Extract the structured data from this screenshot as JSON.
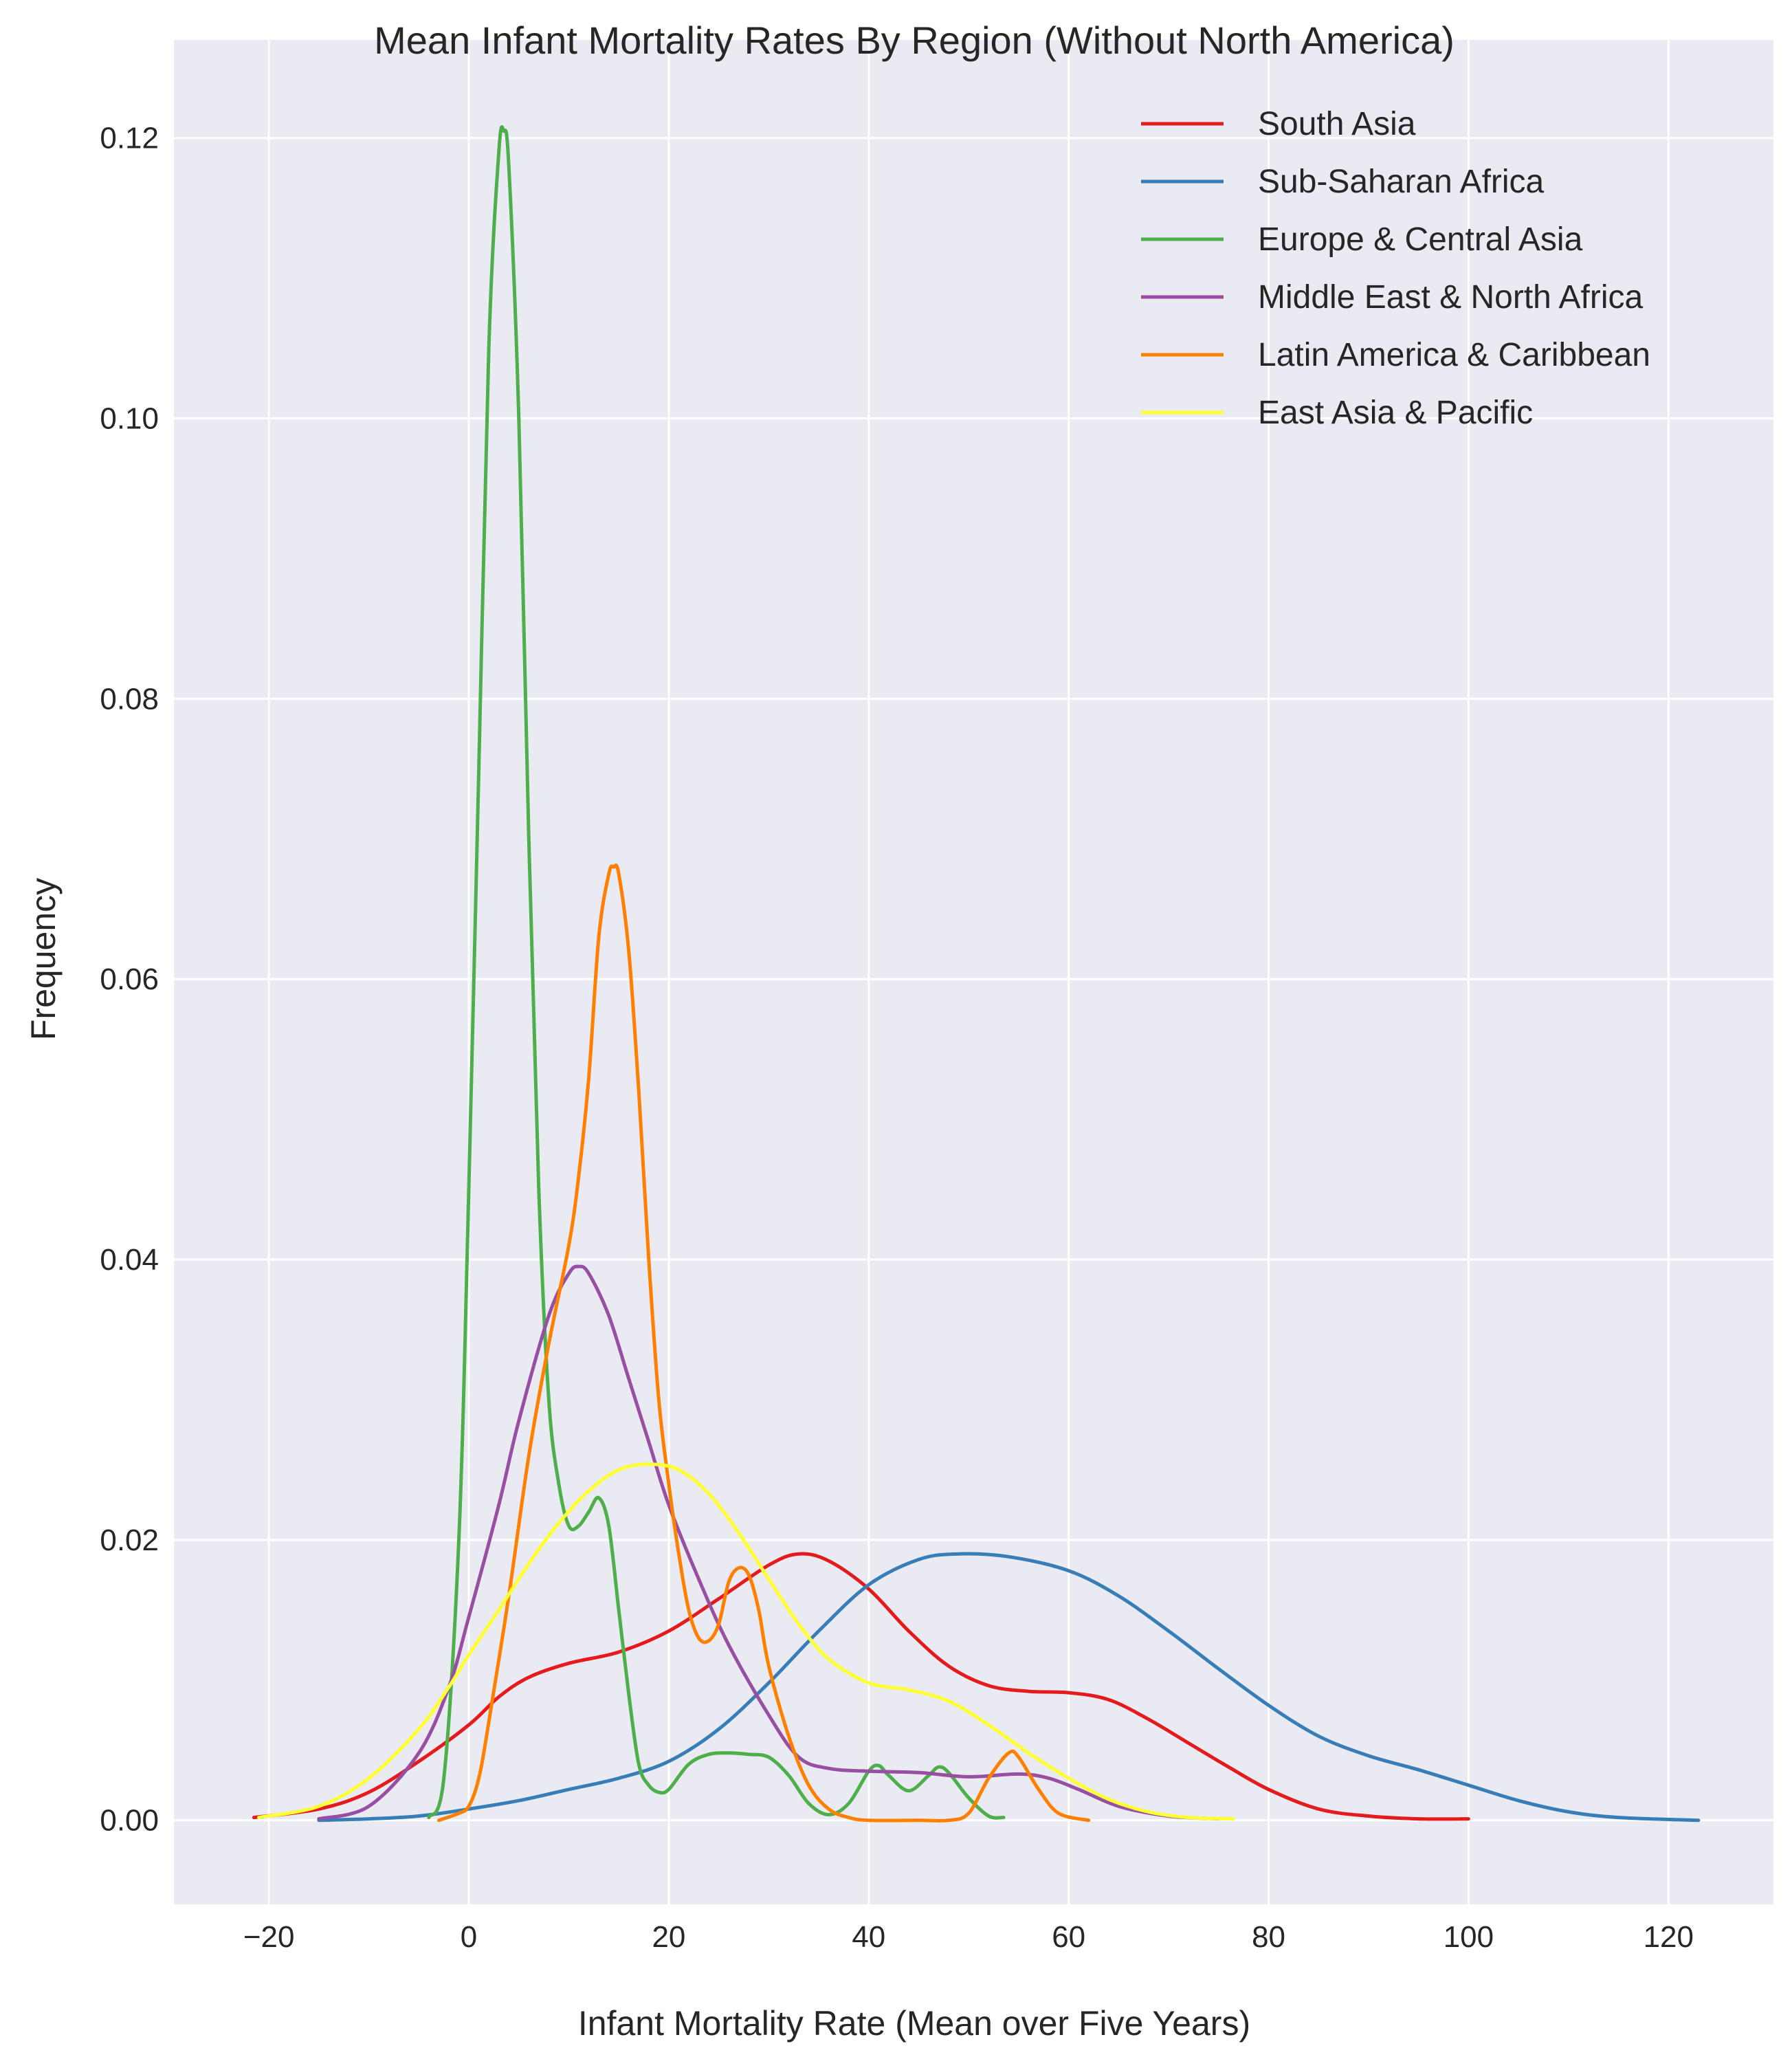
{
  "chart_data": {
    "type": "line",
    "title": "Mean Infant Mortality Rates By Region (Without North America)",
    "xlabel": "Infant Mortality Rate (Mean over Five Years)",
    "ylabel": "Frequency",
    "xlim": [
      -29.5,
      130.5
    ],
    "ylim": [
      -0.006,
      0.127
    ],
    "xticks": [
      -20,
      0,
      20,
      40,
      60,
      80,
      100,
      120
    ],
    "xtick_labels": [
      "−20",
      "0",
      "20",
      "40",
      "60",
      "80",
      "100",
      "120"
    ],
    "yticks": [
      0.0,
      0.02,
      0.04,
      0.06,
      0.08,
      0.1,
      0.12
    ],
    "ytick_labels": [
      "0.00",
      "0.02",
      "0.04",
      "0.06",
      "0.08",
      "0.10",
      "0.12"
    ],
    "grid": true,
    "background": "#eaeaf2",
    "legend": {
      "placement": "top-right"
    },
    "series": [
      {
        "name": "South Asia",
        "color": "#e41a1c",
        "points": [
          [
            -21.5,
            0.0002
          ],
          [
            -15,
            0.0008
          ],
          [
            -10,
            0.002
          ],
          [
            -5,
            0.0042
          ],
          [
            0,
            0.0068
          ],
          [
            3,
            0.0088
          ],
          [
            6,
            0.0102
          ],
          [
            10,
            0.0112
          ],
          [
            15,
            0.012
          ],
          [
            20,
            0.0135
          ],
          [
            25,
            0.0158
          ],
          [
            30,
            0.0182
          ],
          [
            33,
            0.019
          ],
          [
            36,
            0.0185
          ],
          [
            40,
            0.0165
          ],
          [
            44,
            0.0135
          ],
          [
            48,
            0.011
          ],
          [
            52,
            0.0096
          ],
          [
            56,
            0.0092
          ],
          [
            60,
            0.0091
          ],
          [
            64,
            0.0086
          ],
          [
            68,
            0.0072
          ],
          [
            72,
            0.0055
          ],
          [
            76,
            0.0038
          ],
          [
            80,
            0.0022
          ],
          [
            85,
            0.0008
          ],
          [
            90,
            0.0003
          ],
          [
            95,
            0.0001
          ],
          [
            100,
            0.0001
          ]
        ]
      },
      {
        "name": "Sub-Saharan Africa",
        "color": "#377eb8",
        "points": [
          [
            -15,
            0.0
          ],
          [
            -10,
            0.0001
          ],
          [
            -5,
            0.0003
          ],
          [
            0,
            0.0008
          ],
          [
            5,
            0.0014
          ],
          [
            10,
            0.0022
          ],
          [
            15,
            0.003
          ],
          [
            20,
            0.0042
          ],
          [
            25,
            0.0065
          ],
          [
            30,
            0.0098
          ],
          [
            35,
            0.0135
          ],
          [
            40,
            0.0168
          ],
          [
            45,
            0.0186
          ],
          [
            49,
            0.019
          ],
          [
            54,
            0.0188
          ],
          [
            60,
            0.0178
          ],
          [
            65,
            0.016
          ],
          [
            70,
            0.0135
          ],
          [
            75,
            0.0108
          ],
          [
            80,
            0.0082
          ],
          [
            85,
            0.006
          ],
          [
            90,
            0.0046
          ],
          [
            95,
            0.0036
          ],
          [
            100,
            0.0025
          ],
          [
            105,
            0.0014
          ],
          [
            110,
            0.0006
          ],
          [
            115,
            0.0002
          ],
          [
            123,
            0.0
          ]
        ]
      },
      {
        "name": "Europe & Central Asia",
        "color": "#4daf4a",
        "points": [
          [
            -4,
            0.0002
          ],
          [
            -2.5,
            0.003
          ],
          [
            -1,
            0.02
          ],
          [
            0,
            0.045
          ],
          [
            1,
            0.075
          ],
          [
            2,
            0.105
          ],
          [
            3,
            0.119
          ],
          [
            3.5,
            0.1205
          ],
          [
            4,
            0.118
          ],
          [
            5,
            0.1
          ],
          [
            6,
            0.07
          ],
          [
            7,
            0.045
          ],
          [
            8,
            0.03
          ],
          [
            9,
            0.024
          ],
          [
            10,
            0.021
          ],
          [
            11,
            0.021
          ],
          [
            12,
            0.022
          ],
          [
            13,
            0.023
          ],
          [
            14,
            0.021
          ],
          [
            15,
            0.015
          ],
          [
            16,
            0.009
          ],
          [
            17,
            0.004
          ],
          [
            18,
            0.0025
          ],
          [
            19,
            0.002
          ],
          [
            20,
            0.0022
          ],
          [
            22,
            0.004
          ],
          [
            24,
            0.0047
          ],
          [
            26,
            0.0048
          ],
          [
            28,
            0.0047
          ],
          [
            30,
            0.0045
          ],
          [
            32,
            0.0032
          ],
          [
            34,
            0.0012
          ],
          [
            36,
            0.0004
          ],
          [
            38,
            0.0012
          ],
          [
            40,
            0.0035
          ],
          [
            41,
            0.0039
          ],
          [
            42,
            0.0032
          ],
          [
            44,
            0.0021
          ],
          [
            46,
            0.0032
          ],
          [
            47,
            0.0038
          ],
          [
            48,
            0.0034
          ],
          [
            50,
            0.0016
          ],
          [
            52,
            0.0003
          ],
          [
            53.5,
            0.0002
          ]
        ]
      },
      {
        "name": "Middle East & North Africa",
        "color": "#984ea3",
        "points": [
          [
            -15,
            0.0001
          ],
          [
            -10,
            0.001
          ],
          [
            -5,
            0.0048
          ],
          [
            -2,
            0.0095
          ],
          [
            0,
            0.0145
          ],
          [
            3,
            0.0225
          ],
          [
            5,
            0.0285
          ],
          [
            8,
            0.036
          ],
          [
            10,
            0.039
          ],
          [
            11,
            0.0395
          ],
          [
            12,
            0.039
          ],
          [
            14,
            0.036
          ],
          [
            16,
            0.0315
          ],
          [
            18,
            0.027
          ],
          [
            20,
            0.0225
          ],
          [
            23,
            0.0172
          ],
          [
            26,
            0.0125
          ],
          [
            30,
            0.0075
          ],
          [
            33,
            0.0045
          ],
          [
            36,
            0.0037
          ],
          [
            40,
            0.0035
          ],
          [
            45,
            0.0034
          ],
          [
            50,
            0.0031
          ],
          [
            55,
            0.0033
          ],
          [
            58,
            0.003
          ],
          [
            61,
            0.0022
          ],
          [
            65,
            0.001
          ],
          [
            70,
            0.0003
          ],
          [
            75,
            0.0001
          ]
        ]
      },
      {
        "name": "Latin America & Caribbean",
        "color": "#ff7f00",
        "points": [
          [
            -3,
            0.0
          ],
          [
            -1,
            0.0005
          ],
          [
            0,
            0.001
          ],
          [
            1,
            0.003
          ],
          [
            2,
            0.007
          ],
          [
            4,
            0.016
          ],
          [
            6,
            0.026
          ],
          [
            8,
            0.034
          ],
          [
            10,
            0.041
          ],
          [
            11,
            0.046
          ],
          [
            12,
            0.053
          ],
          [
            13,
            0.063
          ],
          [
            14,
            0.0675
          ],
          [
            14.5,
            0.068
          ],
          [
            15,
            0.0675
          ],
          [
            16,
            0.062
          ],
          [
            17,
            0.052
          ],
          [
            18,
            0.04
          ],
          [
            19,
            0.03
          ],
          [
            20,
            0.024
          ],
          [
            21,
            0.019
          ],
          [
            22,
            0.015
          ],
          [
            23,
            0.013
          ],
          [
            24,
            0.0128
          ],
          [
            25,
            0.014
          ],
          [
            26,
            0.017
          ],
          [
            27,
            0.018
          ],
          [
            28,
            0.0175
          ],
          [
            29,
            0.015
          ],
          [
            30,
            0.011
          ],
          [
            32,
            0.006
          ],
          [
            34,
            0.0025
          ],
          [
            36,
            0.0008
          ],
          [
            38,
            0.0002
          ],
          [
            40,
            0.0
          ],
          [
            45,
            0.0
          ],
          [
            48,
            0.0
          ],
          [
            50,
            0.0005
          ],
          [
            52,
            0.003
          ],
          [
            54,
            0.0048
          ],
          [
            55,
            0.0045
          ],
          [
            57,
            0.0022
          ],
          [
            59,
            0.0005
          ],
          [
            62,
            0.0
          ]
        ]
      },
      {
        "name": "East Asia & Pacific",
        "color": "#ffff33",
        "points": [
          [
            -21,
            0.0002
          ],
          [
            -15,
            0.001
          ],
          [
            -10,
            0.003
          ],
          [
            -5,
            0.0065
          ],
          [
            -2,
            0.0095
          ],
          [
            0,
            0.0118
          ],
          [
            3,
            0.015
          ],
          [
            6,
            0.0183
          ],
          [
            9,
            0.0212
          ],
          [
            12,
            0.0235
          ],
          [
            15,
            0.025
          ],
          [
            18,
            0.0254
          ],
          [
            21,
            0.025
          ],
          [
            24,
            0.0233
          ],
          [
            27,
            0.0205
          ],
          [
            30,
            0.0172
          ],
          [
            33,
            0.014
          ],
          [
            36,
            0.0115
          ],
          [
            40,
            0.0098
          ],
          [
            44,
            0.0093
          ],
          [
            48,
            0.0085
          ],
          [
            52,
            0.0068
          ],
          [
            56,
            0.0048
          ],
          [
            60,
            0.003
          ],
          [
            64,
            0.0015
          ],
          [
            68,
            0.0006
          ],
          [
            72,
            0.0002
          ],
          [
            76.5,
            0.0001
          ]
        ]
      }
    ]
  }
}
